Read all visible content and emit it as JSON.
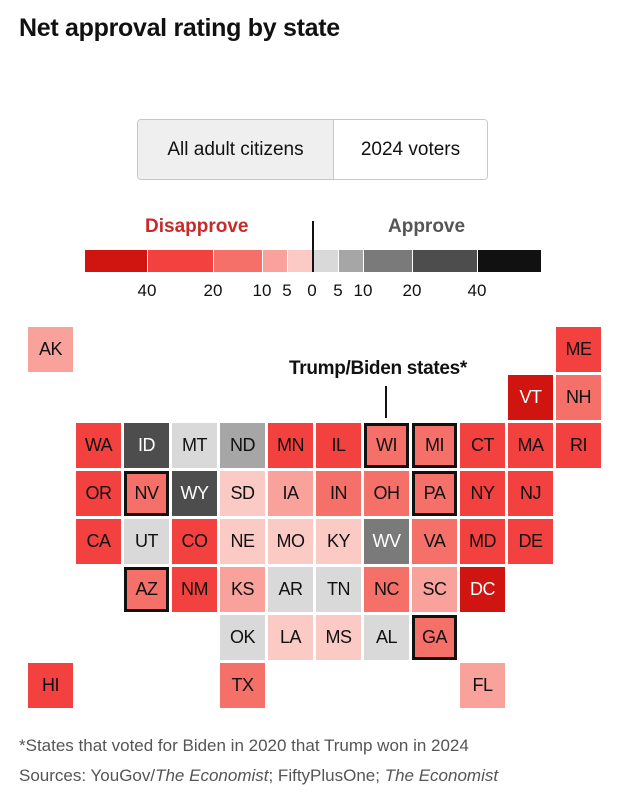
{
  "title": "Net approval rating by state",
  "toggle": {
    "options": [
      "All adult citizens",
      "2024 voters"
    ],
    "selected": "All adult citizens"
  },
  "legend": {
    "disapprove_label": "Disapprove",
    "approve_label": "Approve",
    "disapprove_color": "#c82a2a",
    "approve_color": "#555555",
    "bins": [
      {
        "range": [
          -100,
          -40
        ],
        "color": "#d0140f"
      },
      {
        "range": [
          -40,
          -20
        ],
        "color": "#f2413e"
      },
      {
        "range": [
          -20,
          -10
        ],
        "color": "#f47069"
      },
      {
        "range": [
          -10,
          -5
        ],
        "color": "#f9a29c"
      },
      {
        "range": [
          -5,
          0
        ],
        "color": "#fccac4"
      },
      {
        "range": [
          0,
          5
        ],
        "color": "#d9d9d9"
      },
      {
        "range": [
          5,
          10
        ],
        "color": "#a6a6a6"
      },
      {
        "range": [
          10,
          20
        ],
        "color": "#7a7a7a"
      },
      {
        "range": [
          20,
          40
        ],
        "color": "#4d4d4d"
      },
      {
        "range": [
          40,
          100
        ],
        "color": "#111111"
      }
    ],
    "ticks": [
      "40",
      "20",
      "10",
      "5",
      "0",
      "5",
      "10",
      "20",
      "40"
    ]
  },
  "chart_data": {
    "type": "heatmap",
    "title": "Net approval rating by state",
    "value_unit": "net approval bin (percentage points)",
    "annotation": "Trump/Biden states*",
    "states": [
      {
        "state": "AK",
        "bin": 3
      },
      {
        "state": "ME",
        "bin": 1
      },
      {
        "state": "VT",
        "bin": 0
      },
      {
        "state": "NH",
        "bin": 2
      },
      {
        "state": "WA",
        "bin": 1
      },
      {
        "state": "ID",
        "bin": 8
      },
      {
        "state": "MT",
        "bin": 5
      },
      {
        "state": "ND",
        "bin": 6
      },
      {
        "state": "MN",
        "bin": 1
      },
      {
        "state": "IL",
        "bin": 1
      },
      {
        "state": "WI",
        "bin": 2,
        "trump_biden": true
      },
      {
        "state": "MI",
        "bin": 2,
        "trump_biden": true
      },
      {
        "state": "CT",
        "bin": 1
      },
      {
        "state": "MA",
        "bin": 1
      },
      {
        "state": "RI",
        "bin": 1
      },
      {
        "state": "OR",
        "bin": 1
      },
      {
        "state": "NV",
        "bin": 2,
        "trump_biden": true
      },
      {
        "state": "WY",
        "bin": 8
      },
      {
        "state": "SD",
        "bin": 4
      },
      {
        "state": "IA",
        "bin": 3
      },
      {
        "state": "IN",
        "bin": 2
      },
      {
        "state": "OH",
        "bin": 2
      },
      {
        "state": "PA",
        "bin": 2,
        "trump_biden": true
      },
      {
        "state": "NY",
        "bin": 1
      },
      {
        "state": "NJ",
        "bin": 1
      },
      {
        "state": "CA",
        "bin": 1
      },
      {
        "state": "UT",
        "bin": 5
      },
      {
        "state": "CO",
        "bin": 1
      },
      {
        "state": "NE",
        "bin": 4
      },
      {
        "state": "MO",
        "bin": 4
      },
      {
        "state": "KY",
        "bin": 4
      },
      {
        "state": "WV",
        "bin": 7
      },
      {
        "state": "VA",
        "bin": 2
      },
      {
        "state": "MD",
        "bin": 1
      },
      {
        "state": "DE",
        "bin": 1
      },
      {
        "state": "AZ",
        "bin": 2,
        "trump_biden": true
      },
      {
        "state": "NM",
        "bin": 1
      },
      {
        "state": "KS",
        "bin": 3
      },
      {
        "state": "AR",
        "bin": 5
      },
      {
        "state": "TN",
        "bin": 5
      },
      {
        "state": "NC",
        "bin": 2
      },
      {
        "state": "SC",
        "bin": 3
      },
      {
        "state": "DC",
        "bin": 0
      },
      {
        "state": "OK",
        "bin": 5
      },
      {
        "state": "LA",
        "bin": 4
      },
      {
        "state": "MS",
        "bin": 4
      },
      {
        "state": "AL",
        "bin": 5
      },
      {
        "state": "GA",
        "bin": 2,
        "trump_biden": true
      },
      {
        "state": "HI",
        "bin": 1
      },
      {
        "state": "TX",
        "bin": 2
      },
      {
        "state": "FL",
        "bin": 3
      }
    ]
  },
  "footnote": "*States that voted for Biden in 2020 that Trump won in 2024",
  "sources": {
    "prefix": "Sources: YouGov/",
    "italic1": "The Economist",
    "mid": "; FiftyPlusOne; ",
    "italic2": "The Economist"
  }
}
